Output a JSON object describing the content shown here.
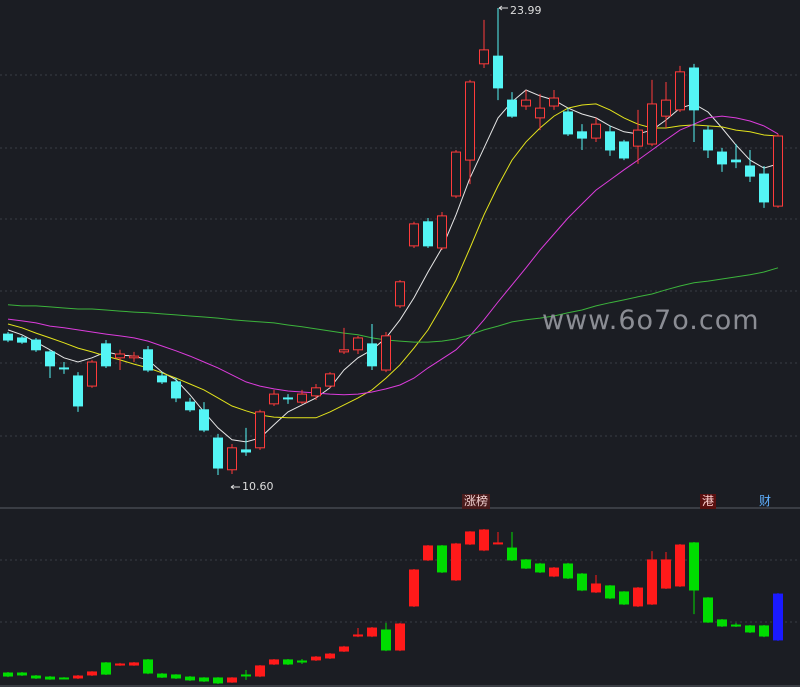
{
  "chart_data": [
    {
      "type": "candlestick",
      "ylim": [
        9.74,
        24.22
      ],
      "hollow_up": true,
      "up_color": "#ff3b3b",
      "down_color": "#54f5f5",
      "high_label": "23.99",
      "low_label": "10.60",
      "open": [
        14.64,
        14.53,
        14.47,
        14.13,
        13.67,
        13.44,
        13.15,
        14.36,
        13.96,
        13.96,
        14.19,
        13.44,
        13.27,
        12.69,
        12.47,
        11.66,
        10.75,
        11.32,
        11.38,
        12.64,
        12.81,
        12.69,
        12.87,
        13.15,
        14.13,
        14.19,
        14.36,
        13.61,
        15.45,
        17.17,
        17.86,
        17.11,
        18.6,
        19.63,
        22.39,
        22.61,
        21.35,
        21.18,
        20.84,
        21.18,
        21.01,
        20.44,
        20.26,
        20.44,
        20.15,
        20.03,
        20.09,
        20.89,
        21.07,
        22.27,
        20.49,
        19.86,
        19.63,
        19.46,
        19.23,
        18.31
      ],
      "close": [
        14.47,
        14.41,
        14.19,
        13.73,
        13.67,
        12.58,
        13.84,
        13.73,
        14.07,
        14.01,
        13.61,
        13.27,
        12.81,
        12.47,
        11.89,
        10.8,
        11.38,
        11.26,
        12.41,
        12.92,
        12.81,
        12.92,
        13.1,
        13.5,
        14.19,
        14.53,
        13.73,
        14.59,
        16.14,
        17.8,
        17.17,
        18.03,
        19.86,
        21.87,
        22.79,
        21.7,
        20.89,
        21.35,
        21.12,
        21.41,
        20.38,
        20.26,
        20.66,
        19.92,
        19.69,
        20.49,
        21.24,
        21.35,
        22.16,
        21.07,
        19.92,
        19.52,
        19.58,
        19.17,
        18.43,
        20.32
      ],
      "high": [
        14.7,
        14.59,
        14.53,
        14.19,
        13.84,
        13.55,
        13.9,
        14.47,
        14.19,
        14.13,
        14.3,
        13.55,
        13.38,
        12.81,
        12.69,
        11.78,
        11.49,
        11.95,
        12.47,
        13.04,
        12.92,
        13.04,
        13.21,
        13.55,
        14.82,
        14.59,
        14.93,
        14.7,
        16.19,
        17.86,
        17.97,
        18.14,
        19.92,
        21.93,
        23.65,
        23.99,
        21.58,
        21.64,
        21.53,
        21.64,
        21.12,
        20.66,
        20.84,
        20.61,
        20.21,
        21.07,
        21.93,
        21.87,
        22.33,
        22.39,
        20.61,
        19.98,
        20.09,
        19.92,
        19.46,
        20.38
      ],
      "low": [
        14.41,
        14.36,
        14.13,
        13.38,
        13.5,
        12.41,
        13.1,
        13.67,
        13.61,
        13.84,
        13.55,
        13.21,
        12.69,
        12.41,
        11.83,
        10.6,
        10.63,
        11.15,
        11.32,
        12.58,
        12.64,
        12.64,
        12.75,
        13.1,
        14.07,
        14.07,
        13.61,
        13.55,
        15.39,
        17.11,
        17.11,
        17.05,
        18.54,
        18.94,
        22.27,
        21.35,
        20.84,
        21.07,
        20.49,
        21.07,
        20.32,
        19.92,
        20.15,
        19.75,
        19.63,
        19.52,
        20.03,
        20.55,
        21.01,
        20.15,
        19.69,
        19.29,
        19.4,
        19.0,
        18.26,
        18.26
      ],
      "series": [
        {
          "color": "#e6e6e6",
          "values": [
            14.76,
            14.62,
            14.41,
            14.19,
            13.96,
            13.84,
            13.96,
            14.13,
            14.04,
            14.01,
            13.9,
            13.55,
            13.33,
            12.9,
            12.41,
            11.95,
            11.61,
            11.55,
            11.66,
            12.04,
            12.41,
            12.61,
            12.81,
            13.1,
            13.61,
            13.96,
            14.19,
            14.53,
            15.05,
            15.68,
            16.42,
            17.11,
            18.06,
            19.12,
            19.98,
            20.84,
            21.3,
            21.64,
            21.47,
            21.35,
            21.12,
            20.95,
            20.84,
            20.61,
            20.44,
            20.38,
            20.49,
            20.78,
            21.12,
            21.24,
            21.01,
            20.55,
            20.06,
            19.63,
            19.4,
            19.52
          ]
        },
        {
          "color": "#e3e31c",
          "values": [
            14.93,
            14.82,
            14.67,
            14.53,
            14.39,
            14.24,
            14.13,
            14.01,
            13.9,
            13.78,
            13.67,
            13.53,
            13.38,
            13.21,
            13.04,
            12.81,
            12.58,
            12.44,
            12.32,
            12.26,
            12.24,
            12.24,
            12.24,
            12.41,
            12.61,
            12.81,
            13.04,
            13.38,
            13.76,
            14.24,
            14.76,
            15.45,
            16.19,
            17.11,
            18.06,
            18.89,
            19.63,
            20.15,
            20.55,
            20.89,
            21.12,
            21.21,
            21.24,
            21.07,
            20.84,
            20.66,
            20.55,
            20.55,
            20.61,
            20.64,
            20.61,
            20.58,
            20.49,
            20.44,
            20.35,
            20.32
          ]
        },
        {
          "color": "#dc3cdc",
          "values": [
            15.07,
            15.02,
            14.96,
            14.87,
            14.82,
            14.76,
            14.7,
            14.64,
            14.59,
            14.53,
            14.44,
            14.3,
            14.16,
            14.01,
            13.84,
            13.67,
            13.47,
            13.27,
            13.15,
            13.07,
            13.01,
            12.98,
            12.95,
            12.92,
            12.9,
            12.92,
            12.98,
            13.07,
            13.18,
            13.38,
            13.67,
            13.93,
            14.19,
            14.59,
            15.05,
            15.56,
            16.05,
            16.54,
            17.05,
            17.51,
            17.97,
            18.37,
            18.77,
            19.06,
            19.35,
            19.63,
            19.92,
            20.21,
            20.49,
            20.66,
            20.84,
            20.89,
            20.84,
            20.75,
            20.61,
            20.38
          ]
        },
        {
          "color": "#3cb43c",
          "values": [
            15.48,
            15.45,
            15.45,
            15.42,
            15.39,
            15.36,
            15.36,
            15.33,
            15.3,
            15.27,
            15.25,
            15.22,
            15.19,
            15.16,
            15.13,
            15.1,
            15.05,
            15.02,
            14.99,
            14.96,
            14.9,
            14.85,
            14.79,
            14.73,
            14.67,
            14.62,
            14.53,
            14.47,
            14.44,
            14.41,
            14.41,
            14.44,
            14.5,
            14.62,
            14.76,
            14.87,
            14.99,
            15.05,
            15.1,
            15.16,
            15.25,
            15.33,
            15.45,
            15.54,
            15.62,
            15.71,
            15.79,
            15.91,
            16.02,
            16.11,
            16.16,
            16.22,
            16.28,
            16.34,
            16.42,
            16.54
          ]
        }
      ]
    },
    {
      "type": "candlestick",
      "ylim": [
        0,
        100
      ],
      "hollow_up": false,
      "up_color": "#ff1a1a",
      "down_color": "#00dc00",
      "last_color": "#1a1aff",
      "open": [
        7.9,
        7.9,
        6.2,
        5.6,
        5.1,
        5.1,
        6.8,
        13.6,
        12.4,
        12.4,
        15.3,
        7.3,
        6.8,
        5.6,
        5.1,
        5.1,
        2.8,
        6.8,
        6.2,
        13.0,
        15.3,
        14.7,
        15.3,
        16.4,
        20.3,
        28.8,
        28.8,
        32.2,
        20.9,
        45.8,
        71.8,
        79.7,
        60.5,
        80.8,
        77.4,
        81.0,
        78.5,
        71.8,
        69.5,
        62.7,
        69.5,
        63.8,
        53.7,
        57.1,
        53.7,
        45.8,
        46.9,
        55.9,
        57.1,
        81.4,
        50.3,
        37.9,
        35.0,
        34.5,
        34.5,
        52.5
      ],
      "close": [
        6.2,
        6.8,
        5.1,
        4.5,
        5.1,
        6.2,
        8.5,
        7.3,
        13.0,
        13.6,
        7.9,
        5.6,
        5.1,
        4.0,
        3.4,
        2.3,
        5.1,
        6.8,
        11.9,
        15.3,
        13.0,
        14.1,
        16.9,
        18.6,
        22.6,
        29.4,
        33.3,
        20.9,
        35.6,
        66.1,
        79.7,
        65.0,
        80.8,
        87.6,
        88.7,
        81.4,
        71.8,
        67.2,
        65.0,
        67.2,
        61.6,
        54.8,
        58.2,
        50.3,
        46.9,
        55.9,
        71.8,
        71.8,
        80.2,
        54.8,
        36.7,
        34.5,
        34.5,
        31.1,
        28.8,
        26.6
      ],
      "high": [
        8.5,
        8.5,
        6.8,
        6.2,
        5.6,
        6.8,
        9.0,
        14.1,
        13.6,
        14.1,
        15.8,
        7.9,
        7.3,
        6.2,
        5.6,
        5.6,
        5.6,
        9.6,
        12.4,
        15.8,
        15.8,
        15.8,
        17.5,
        19.2,
        23.2,
        33.3,
        33.9,
        36.2,
        36.2,
        66.7,
        80.2,
        80.2,
        81.4,
        88.1,
        89.3,
        87.6,
        87.6,
        72.3,
        70.1,
        67.8,
        70.1,
        64.4,
        63.3,
        57.6,
        54.2,
        56.5,
        76.8,
        76.3,
        80.8,
        81.9,
        50.8,
        38.4,
        36.2,
        35.0,
        35.0,
        53.1
      ],
      "low": [
        5.6,
        6.2,
        4.5,
        4.0,
        4.5,
        4.5,
        6.2,
        6.8,
        11.9,
        11.9,
        7.3,
        5.1,
        4.5,
        3.4,
        2.8,
        1.7,
        2.3,
        4.0,
        5.6,
        12.4,
        12.4,
        13.0,
        14.7,
        15.8,
        19.8,
        28.2,
        28.2,
        20.3,
        20.3,
        45.2,
        71.2,
        64.4,
        59.9,
        80.2,
        76.8,
        80.5,
        71.2,
        66.7,
        64.4,
        62.1,
        61.0,
        54.2,
        53.1,
        49.7,
        46.3,
        45.2,
        46.3,
        55.4,
        56.5,
        41.2,
        36.2,
        33.9,
        33.9,
        30.5,
        28.2,
        26.0
      ]
    }
  ],
  "tags": [
    "涨榜",
    "港",
    "财"
  ],
  "watermark": "www.6o7o.com"
}
